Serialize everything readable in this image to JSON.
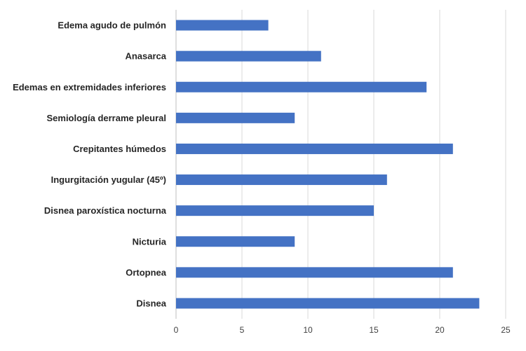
{
  "chart_data": {
    "type": "bar",
    "orientation": "horizontal",
    "categories": [
      "Edema agudo de pulmón",
      "Anasarca",
      "Edemas en extremidades inferiores",
      "Semiología derrame pleural",
      "Crepitantes húmedos",
      "Ingurgitación yugular (45º)",
      "Disnea paroxística nocturna",
      "Nicturia",
      "Ortopnea",
      "Disnea"
    ],
    "values": [
      7,
      11,
      19,
      9,
      21,
      16,
      15,
      9,
      21,
      23
    ],
    "xlim": [
      0,
      25
    ],
    "xticks": [
      0,
      5,
      10,
      15,
      20,
      25
    ],
    "grid": "vertical",
    "legend": "none",
    "bar_color": "#4472C4",
    "title": "",
    "xlabel": "",
    "ylabel": ""
  }
}
